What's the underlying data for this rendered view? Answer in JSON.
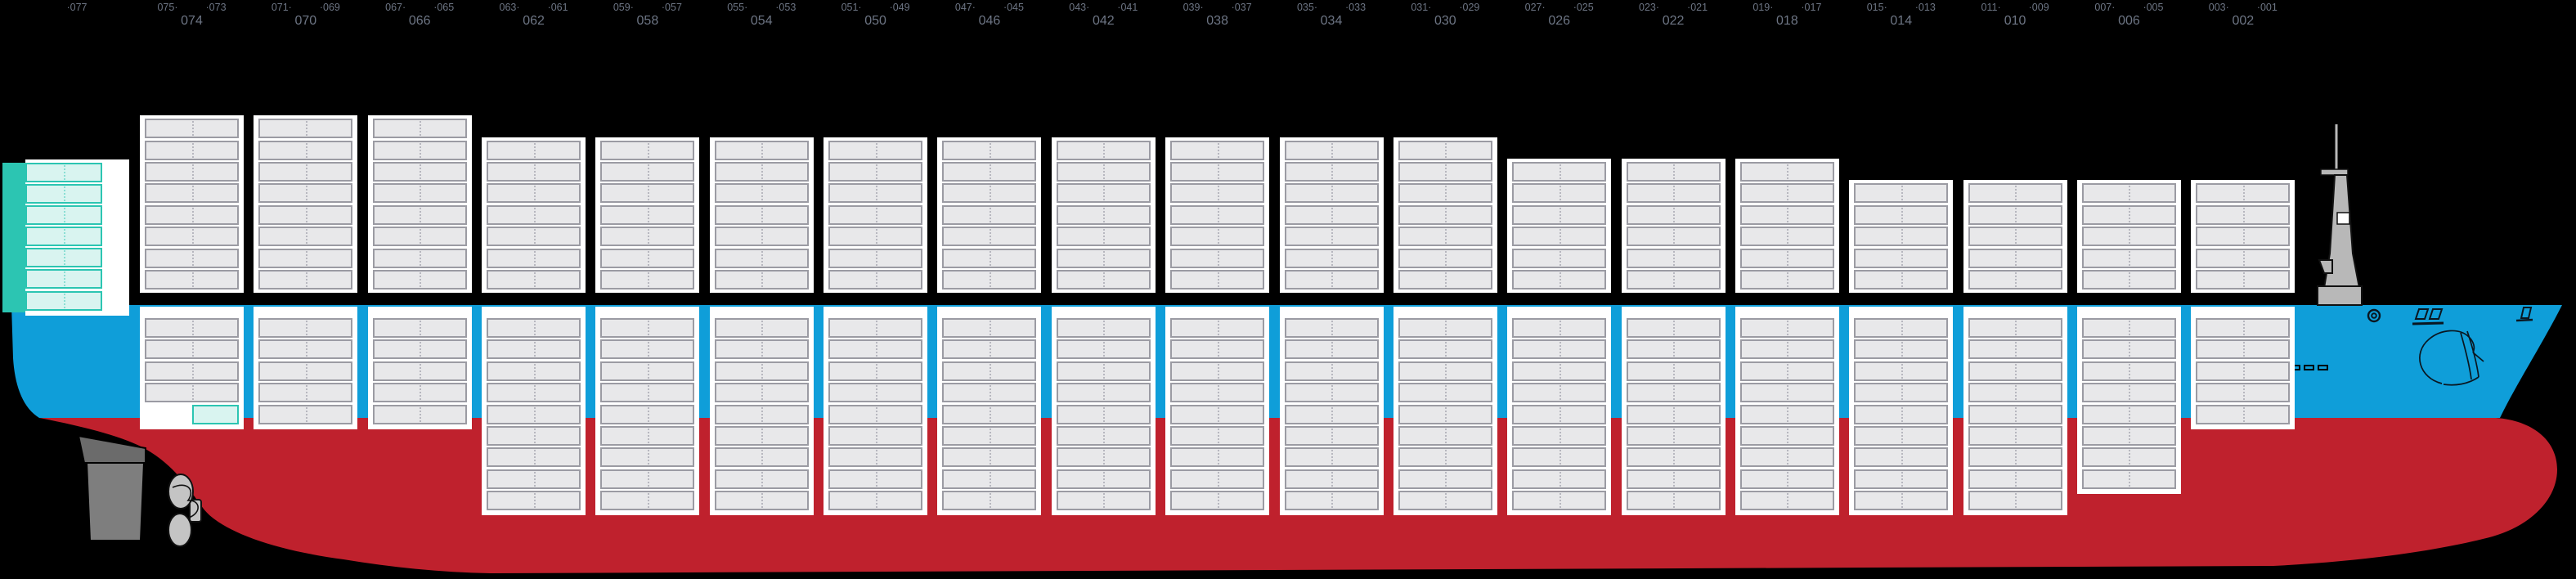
{
  "app": {
    "view_title": "vessel-bay-profile"
  },
  "colors": {
    "background": "#000000",
    "hull_blue": "#0f9ed9",
    "hull_red": "#bf212d",
    "stack_backdrop": "#ffffff",
    "cell_fill": "#e8e8ea",
    "cell_border": "#9b9ba3",
    "cell_divider": "#b7b7bf",
    "teal_accent": "#2cc5b2",
    "teal_fill": "#d9f4f0",
    "teal_divider": "#8adfd4",
    "label_text": "#6d7584",
    "mast_gray": "#b8b8b8",
    "rudder_dark": "#6b6b6b",
    "rudder_light": "#7e7e7e",
    "propeller_gray": "#c4c4c4",
    "outline": "#0a1620"
  },
  "header": {
    "orphan_label": "·077"
  },
  "superstructure": {
    "label": "·077",
    "deck_levels": 7,
    "has_funnel_bar": true
  },
  "bays": [
    {
      "id": "074",
      "top_left": "075·",
      "top_right": "·073",
      "tiers_above": 8,
      "tiers_hold": 5,
      "hold_variant": "half_bottom_teal"
    },
    {
      "id": "070",
      "top_left": "071·",
      "top_right": "·069",
      "tiers_above": 8,
      "tiers_hold": 5,
      "hold_variant": "normal"
    },
    {
      "id": "066",
      "top_left": "067·",
      "top_right": "·065",
      "tiers_above": 8,
      "tiers_hold": 5,
      "hold_variant": "normal"
    },
    {
      "id": "062",
      "top_left": "063·",
      "top_right": "·061",
      "tiers_above": 7,
      "tiers_hold": 9,
      "hold_variant": "normal"
    },
    {
      "id": "058",
      "top_left": "059·",
      "top_right": "·057",
      "tiers_above": 7,
      "tiers_hold": 9,
      "hold_variant": "normal"
    },
    {
      "id": "054",
      "top_left": "055·",
      "top_right": "·053",
      "tiers_above": 7,
      "tiers_hold": 9,
      "hold_variant": "normal"
    },
    {
      "id": "050",
      "top_left": "051·",
      "top_right": "·049",
      "tiers_above": 7,
      "tiers_hold": 9,
      "hold_variant": "normal"
    },
    {
      "id": "046",
      "top_left": "047·",
      "top_right": "·045",
      "tiers_above": 7,
      "tiers_hold": 9,
      "hold_variant": "normal"
    },
    {
      "id": "042",
      "top_left": "043·",
      "top_right": "·041",
      "tiers_above": 7,
      "tiers_hold": 9,
      "hold_variant": "normal"
    },
    {
      "id": "038",
      "top_left": "039·",
      "top_right": "·037",
      "tiers_above": 7,
      "tiers_hold": 9,
      "hold_variant": "normal"
    },
    {
      "id": "034",
      "top_left": "035·",
      "top_right": "·033",
      "tiers_above": 7,
      "tiers_hold": 9,
      "hold_variant": "normal"
    },
    {
      "id": "030",
      "top_left": "031·",
      "top_right": "·029",
      "tiers_above": 7,
      "tiers_hold": 9,
      "hold_variant": "normal"
    },
    {
      "id": "026",
      "top_left": "027·",
      "top_right": "·025",
      "tiers_above": 6,
      "tiers_hold": 9,
      "hold_variant": "normal"
    },
    {
      "id": "022",
      "top_left": "023·",
      "top_right": "·021",
      "tiers_above": 6,
      "tiers_hold": 9,
      "hold_variant": "normal"
    },
    {
      "id": "018",
      "top_left": "019·",
      "top_right": "·017",
      "tiers_above": 6,
      "tiers_hold": 9,
      "hold_variant": "normal"
    },
    {
      "id": "014",
      "top_left": "015·",
      "top_right": "·013",
      "tiers_above": 5,
      "tiers_hold": 9,
      "hold_variant": "normal"
    },
    {
      "id": "010",
      "top_left": "011·",
      "top_right": "·009",
      "tiers_above": 5,
      "tiers_hold": 9,
      "hold_variant": "normal"
    },
    {
      "id": "006",
      "top_left": "007·",
      "top_right": "·005",
      "tiers_above": 5,
      "tiers_hold": 8,
      "hold_variant": "normal"
    },
    {
      "id": "002",
      "top_left": "003·",
      "top_right": "·001",
      "tiers_above": 5,
      "tiers_hold": 5,
      "hold_variant": "normal"
    }
  ],
  "highlights": [
    {
      "bay": "074",
      "slot": "hold bottom tier, forward half",
      "color": "teal"
    }
  ],
  "hull_parts": [
    "rudder",
    "propeller",
    "bulbous-bow",
    "foremast",
    "anchor-sketch",
    "fairlead",
    "mooring-openings",
    "draft-marks",
    "stern-deck-step"
  ]
}
